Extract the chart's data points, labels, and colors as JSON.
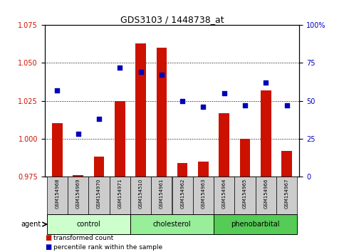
{
  "title": "GDS3103 / 1448738_at",
  "samples": [
    "GSM154968",
    "GSM154969",
    "GSM154970",
    "GSM154971",
    "GSM154510",
    "GSM154961",
    "GSM154962",
    "GSM154963",
    "GSM154964",
    "GSM154965",
    "GSM154966",
    "GSM154967"
  ],
  "transformed_count": [
    1.01,
    0.976,
    0.988,
    1.025,
    1.063,
    1.06,
    0.984,
    0.985,
    1.017,
    1.0,
    1.032,
    0.992
  ],
  "percentile_rank": [
    57,
    28,
    38,
    72,
    69,
    67,
    50,
    46,
    55,
    47,
    62,
    47
  ],
  "groups": [
    {
      "label": "control",
      "start": 0,
      "end": 4,
      "color": "#ccffcc"
    },
    {
      "label": "cholesterol",
      "start": 4,
      "end": 8,
      "color": "#99ee99"
    },
    {
      "label": "phenobarbital",
      "start": 8,
      "end": 12,
      "color": "#55cc55"
    }
  ],
  "ylim_left": [
    0.975,
    1.075
  ],
  "ylim_right": [
    0,
    100
  ],
  "yticks_left": [
    0.975,
    1.0,
    1.025,
    1.05,
    1.075
  ],
  "yticks_right": [
    0,
    25,
    50,
    75,
    100
  ],
  "bar_color": "#cc1100",
  "scatter_color": "#0000bb",
  "background_color": "#ffffff",
  "grid_color": "#000000",
  "label_area_color": "#cccccc",
  "agent_label": "agent"
}
